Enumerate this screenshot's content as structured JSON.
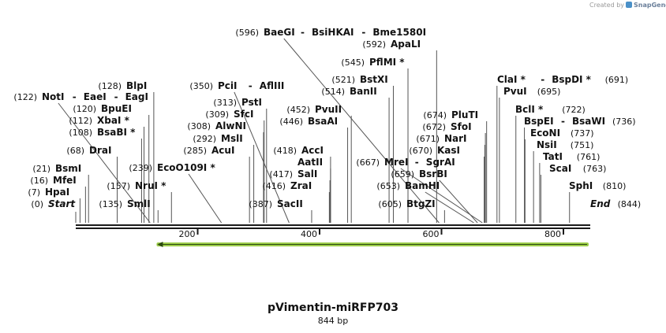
{
  "credit": {
    "created_by": "Created by",
    "brand": "SnapGene"
  },
  "plasmid": {
    "name": "pVimentin-miRFP703",
    "length_label": "844 bp",
    "length_bp": 844
  },
  "ruler_ticks": [
    "200",
    "400",
    "600",
    "800"
  ],
  "feature": {
    "name": "miRFP703",
    "start_bp": 130,
    "end_bp": 844,
    "direction": "reverse",
    "color": "#9ccc4a"
  },
  "sites": [
    {
      "pos": "(0)",
      "labels": [
        "Start"
      ],
      "bp": 0
    },
    {
      "pos": "(7)",
      "labels": [
        "HpaI"
      ],
      "bp": 7
    },
    {
      "pos": "(16)",
      "labels": [
        "MfeI"
      ],
      "bp": 16
    },
    {
      "pos": "(21)",
      "labels": [
        "BsmI"
      ],
      "bp": 21
    },
    {
      "pos": "(68)",
      "labels": [
        "DraI"
      ],
      "bp": 68
    },
    {
      "pos": "(108)",
      "labels": [
        "BsaBI *"
      ],
      "bp": 108
    },
    {
      "pos": "(112)",
      "labels": [
        "XbaI *"
      ],
      "bp": 112
    },
    {
      "pos": "(120)",
      "labels": [
        "BpuEI"
      ],
      "bp": 120
    },
    {
      "pos": "(122)",
      "labels": [
        "NotI",
        "EaeI",
        "EagI"
      ],
      "bp": 122
    },
    {
      "pos": "(128)",
      "labels": [
        "BlpI"
      ],
      "bp": 128
    },
    {
      "pos": "(135)",
      "labels": [
        "SmlI"
      ],
      "bp": 135
    },
    {
      "pos": "(157)",
      "labels": [
        "NruI *"
      ],
      "bp": 157
    },
    {
      "pos": "(239)",
      "labels": [
        "EcoO109I *"
      ],
      "bp": 239
    },
    {
      "pos": "(285)",
      "labels": [
        "AcuI"
      ],
      "bp": 285
    },
    {
      "pos": "(292)",
      "labels": [
        "MslI"
      ],
      "bp": 292
    },
    {
      "pos": "(308)",
      "labels": [
        "AlwNI"
      ],
      "bp": 308
    },
    {
      "pos": "(309)",
      "labels": [
        "SfcI"
      ],
      "bp": 309
    },
    {
      "pos": "(313)",
      "labels": [
        "PstI"
      ],
      "bp": 313
    },
    {
      "pos": "(350)",
      "labels": [
        "PciI",
        "AflIII"
      ],
      "bp": 350
    },
    {
      "pos": "(387)",
      "labels": [
        "SacII"
      ],
      "bp": 387
    },
    {
      "pos": "(416)",
      "labels": [
        "ZraI"
      ],
      "bp": 416
    },
    {
      "pos": "(417)",
      "labels": [
        "SalI"
      ],
      "bp": 417
    },
    {
      "pos": "",
      "labels": [
        "AatII"
      ],
      "bp": 418
    },
    {
      "pos": "(418)",
      "labels": [
        "AccI"
      ],
      "bp": 418
    },
    {
      "pos": "(446)",
      "labels": [
        "BsaAI"
      ],
      "bp": 446
    },
    {
      "pos": "(452)",
      "labels": [
        "PvuII"
      ],
      "bp": 452
    },
    {
      "pos": "(514)",
      "labels": [
        "BanII"
      ],
      "bp": 514
    },
    {
      "pos": "(521)",
      "labels": [
        "BstXI"
      ],
      "bp": 521
    },
    {
      "pos": "(545)",
      "labels": [
        "PflMI *"
      ],
      "bp": 545
    },
    {
      "pos": "(592)",
      "labels": [
        "ApaLI"
      ],
      "bp": 592
    },
    {
      "pos": "(596)",
      "labels": [
        "BaeGI",
        "BsiHKAI",
        "Bme1580I"
      ],
      "bp": 596
    },
    {
      "pos": "(605)",
      "labels": [
        "BtgZI"
      ],
      "bp": 605
    },
    {
      "pos": "(653)",
      "labels": [
        "BamHI"
      ],
      "bp": 653
    },
    {
      "pos": "(659)",
      "labels": [
        "BsrBI"
      ],
      "bp": 659
    },
    {
      "pos": "(667)",
      "labels": [
        "MreI",
        "SgrAI"
      ],
      "bp": 667
    },
    {
      "pos": "(670)",
      "labels": [
        "KasI"
      ],
      "bp": 670
    },
    {
      "pos": "(671)",
      "labels": [
        "NarI"
      ],
      "bp": 671
    },
    {
      "pos": "(672)",
      "labels": [
        "SfoI"
      ],
      "bp": 672
    },
    {
      "pos": "(674)",
      "labels": [
        "PluTI"
      ],
      "bp": 674
    },
    {
      "pos": "(691)",
      "labels": [
        "ClaI *",
        "BspDI *"
      ],
      "bp": 691
    },
    {
      "pos": "(695)",
      "labels": [
        "PvuI"
      ],
      "bp": 695
    },
    {
      "pos": "(722)",
      "labels": [
        "BclI *"
      ],
      "bp": 722
    },
    {
      "pos": "(736)",
      "labels": [
        "BspEI",
        "BsaWI"
      ],
      "bp": 736
    },
    {
      "pos": "(737)",
      "labels": [
        "EcoNI"
      ],
      "bp": 737
    },
    {
      "pos": "(751)",
      "labels": [
        "NsiI"
      ],
      "bp": 751
    },
    {
      "pos": "(761)",
      "labels": [
        "TatI"
      ],
      "bp": 761
    },
    {
      "pos": "(763)",
      "labels": [
        "ScaI"
      ],
      "bp": 763
    },
    {
      "pos": "(810)",
      "labels": [
        "SphI"
      ],
      "bp": 810
    },
    {
      "pos": "(844)",
      "labels": [
        "End"
      ],
      "bp": 844
    }
  ]
}
